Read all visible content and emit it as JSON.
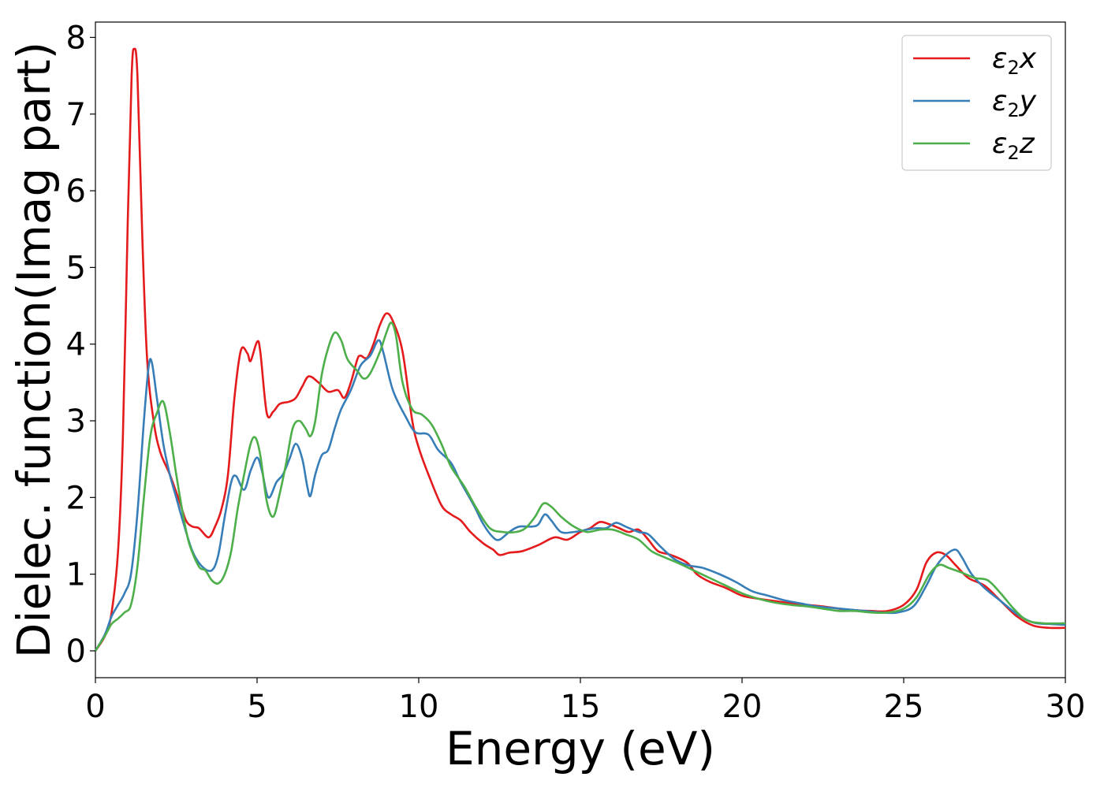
{
  "chart_data": {
    "type": "line",
    "xlabel": "Energy (eV)",
    "ylabel": "Dielec. function(Imag part)",
    "xlim": [
      0,
      30
    ],
    "ylim": [
      -0.35,
      8.2
    ],
    "xticks": [
      0,
      5,
      10,
      15,
      20,
      25,
      30
    ],
    "yticks": [
      0,
      1,
      2,
      3,
      4,
      5,
      6,
      7,
      8
    ],
    "grid": false,
    "legend_position": "top-right",
    "series": [
      {
        "name": "ε2x",
        "color": "#e41a1c",
        "points": [
          [
            0,
            0
          ],
          [
            0.3,
            0.2
          ],
          [
            0.5,
            0.5
          ],
          [
            0.7,
            1.3
          ],
          [
            0.85,
            2.8
          ],
          [
            1.0,
            5.6
          ],
          [
            1.12,
            7.5
          ],
          [
            1.2,
            7.85
          ],
          [
            1.3,
            7.5
          ],
          [
            1.45,
            5.4
          ],
          [
            1.6,
            3.8
          ],
          [
            1.8,
            3.0
          ],
          [
            2.0,
            2.6
          ],
          [
            2.3,
            2.3
          ],
          [
            2.6,
            1.95
          ],
          [
            2.8,
            1.7
          ],
          [
            3.0,
            1.62
          ],
          [
            3.2,
            1.6
          ],
          [
            3.5,
            1.48
          ],
          [
            3.7,
            1.62
          ],
          [
            3.9,
            1.85
          ],
          [
            4.1,
            2.3
          ],
          [
            4.3,
            3.3
          ],
          [
            4.5,
            3.92
          ],
          [
            4.7,
            3.88
          ],
          [
            4.8,
            3.78
          ],
          [
            5.0,
            4.03
          ],
          [
            5.1,
            3.9
          ],
          [
            5.3,
            3.1
          ],
          [
            5.5,
            3.12
          ],
          [
            5.7,
            3.22
          ],
          [
            6.0,
            3.25
          ],
          [
            6.2,
            3.3
          ],
          [
            6.4,
            3.45
          ],
          [
            6.6,
            3.58
          ],
          [
            6.9,
            3.5
          ],
          [
            7.2,
            3.38
          ],
          [
            7.5,
            3.4
          ],
          [
            7.7,
            3.3
          ],
          [
            7.9,
            3.5
          ],
          [
            8.1,
            3.8
          ],
          [
            8.2,
            3.85
          ],
          [
            8.4,
            3.82
          ],
          [
            8.6,
            4.0
          ],
          [
            8.8,
            4.25
          ],
          [
            9.0,
            4.4
          ],
          [
            9.2,
            4.3
          ],
          [
            9.5,
            3.9
          ],
          [
            9.8,
            3.0
          ],
          [
            10.0,
            2.65
          ],
          [
            10.3,
            2.3
          ],
          [
            10.7,
            1.9
          ],
          [
            11.0,
            1.78
          ],
          [
            11.3,
            1.7
          ],
          [
            11.6,
            1.55
          ],
          [
            12.0,
            1.4
          ],
          [
            12.3,
            1.32
          ],
          [
            12.5,
            1.25
          ],
          [
            12.8,
            1.28
          ],
          [
            13.2,
            1.3
          ],
          [
            13.7,
            1.38
          ],
          [
            14.2,
            1.48
          ],
          [
            14.6,
            1.45
          ],
          [
            15.0,
            1.55
          ],
          [
            15.3,
            1.6
          ],
          [
            15.6,
            1.68
          ],
          [
            15.9,
            1.65
          ],
          [
            16.2,
            1.6
          ],
          [
            16.5,
            1.55
          ],
          [
            16.8,
            1.58
          ],
          [
            17.1,
            1.45
          ],
          [
            17.4,
            1.3
          ],
          [
            17.8,
            1.25
          ],
          [
            18.3,
            1.15
          ],
          [
            18.6,
            1.0
          ],
          [
            19.0,
            0.9
          ],
          [
            19.5,
            0.82
          ],
          [
            20.0,
            0.72
          ],
          [
            20.5,
            0.68
          ],
          [
            21.0,
            0.65
          ],
          [
            21.5,
            0.62
          ],
          [
            22.0,
            0.6
          ],
          [
            22.5,
            0.58
          ],
          [
            23.0,
            0.55
          ],
          [
            23.5,
            0.53
          ],
          [
            24.0,
            0.52
          ],
          [
            24.5,
            0.52
          ],
          [
            25.0,
            0.6
          ],
          [
            25.4,
            0.8
          ],
          [
            25.7,
            1.15
          ],
          [
            26.0,
            1.28
          ],
          [
            26.3,
            1.25
          ],
          [
            26.6,
            1.12
          ],
          [
            27.0,
            0.95
          ],
          [
            27.5,
            0.85
          ],
          [
            28.0,
            0.65
          ],
          [
            28.5,
            0.45
          ],
          [
            29.0,
            0.33
          ],
          [
            29.5,
            0.3
          ],
          [
            30.0,
            0.3
          ]
        ]
      },
      {
        "name": "ε2y",
        "color": "#377eb8",
        "points": [
          [
            0,
            0
          ],
          [
            0.3,
            0.22
          ],
          [
            0.5,
            0.45
          ],
          [
            0.7,
            0.6
          ],
          [
            0.9,
            0.75
          ],
          [
            1.1,
            1.0
          ],
          [
            1.3,
            1.8
          ],
          [
            1.5,
            3.0
          ],
          [
            1.65,
            3.72
          ],
          [
            1.75,
            3.75
          ],
          [
            1.9,
            3.3
          ],
          [
            2.1,
            2.7
          ],
          [
            2.3,
            2.3
          ],
          [
            2.5,
            2.0
          ],
          [
            2.7,
            1.7
          ],
          [
            3.0,
            1.3
          ],
          [
            3.3,
            1.1
          ],
          [
            3.6,
            1.05
          ],
          [
            3.8,
            1.25
          ],
          [
            4.0,
            1.75
          ],
          [
            4.2,
            2.2
          ],
          [
            4.35,
            2.28
          ],
          [
            4.6,
            2.1
          ],
          [
            4.8,
            2.35
          ],
          [
            5.0,
            2.52
          ],
          [
            5.15,
            2.35
          ],
          [
            5.35,
            2.0
          ],
          [
            5.6,
            2.2
          ],
          [
            5.8,
            2.3
          ],
          [
            6.0,
            2.5
          ],
          [
            6.2,
            2.7
          ],
          [
            6.4,
            2.5
          ],
          [
            6.55,
            2.15
          ],
          [
            6.65,
            2.02
          ],
          [
            6.8,
            2.3
          ],
          [
            7.0,
            2.55
          ],
          [
            7.2,
            2.62
          ],
          [
            7.4,
            2.9
          ],
          [
            7.6,
            3.15
          ],
          [
            7.9,
            3.4
          ],
          [
            8.2,
            3.72
          ],
          [
            8.5,
            3.85
          ],
          [
            8.75,
            4.05
          ],
          [
            8.9,
            3.9
          ],
          [
            9.2,
            3.4
          ],
          [
            9.6,
            3.05
          ],
          [
            9.9,
            2.85
          ],
          [
            10.3,
            2.82
          ],
          [
            10.6,
            2.62
          ],
          [
            11.0,
            2.45
          ],
          [
            11.3,
            2.2
          ],
          [
            11.7,
            1.9
          ],
          [
            12.0,
            1.65
          ],
          [
            12.3,
            1.48
          ],
          [
            12.5,
            1.45
          ],
          [
            12.8,
            1.55
          ],
          [
            13.1,
            1.62
          ],
          [
            13.5,
            1.62
          ],
          [
            13.7,
            1.65
          ],
          [
            13.9,
            1.78
          ],
          [
            14.1,
            1.7
          ],
          [
            14.4,
            1.55
          ],
          [
            14.8,
            1.55
          ],
          [
            15.2,
            1.58
          ],
          [
            15.5,
            1.6
          ],
          [
            15.8,
            1.6
          ],
          [
            16.1,
            1.67
          ],
          [
            16.4,
            1.62
          ],
          [
            16.8,
            1.55
          ],
          [
            17.1,
            1.52
          ],
          [
            17.5,
            1.35
          ],
          [
            17.9,
            1.2
          ],
          [
            18.3,
            1.12
          ],
          [
            18.8,
            1.08
          ],
          [
            19.3,
            1.0
          ],
          [
            19.8,
            0.9
          ],
          [
            20.3,
            0.78
          ],
          [
            20.8,
            0.72
          ],
          [
            21.3,
            0.66
          ],
          [
            21.8,
            0.62
          ],
          [
            22.3,
            0.58
          ],
          [
            22.8,
            0.56
          ],
          [
            23.3,
            0.54
          ],
          [
            23.8,
            0.52
          ],
          [
            24.3,
            0.5
          ],
          [
            24.8,
            0.5
          ],
          [
            25.3,
            0.58
          ],
          [
            25.7,
            0.85
          ],
          [
            26.0,
            1.1
          ],
          [
            26.3,
            1.25
          ],
          [
            26.6,
            1.32
          ],
          [
            26.8,
            1.22
          ],
          [
            27.1,
            1.0
          ],
          [
            27.5,
            0.82
          ],
          [
            28.0,
            0.65
          ],
          [
            28.5,
            0.48
          ],
          [
            29.0,
            0.37
          ],
          [
            29.5,
            0.35
          ],
          [
            30.0,
            0.34
          ]
        ]
      },
      {
        "name": "ε2z",
        "color": "#4daf4a",
        "points": [
          [
            0,
            0
          ],
          [
            0.3,
            0.2
          ],
          [
            0.5,
            0.35
          ],
          [
            0.7,
            0.42
          ],
          [
            0.9,
            0.5
          ],
          [
            1.1,
            0.6
          ],
          [
            1.3,
            1.1
          ],
          [
            1.5,
            2.0
          ],
          [
            1.7,
            2.8
          ],
          [
            1.9,
            3.1
          ],
          [
            2.1,
            3.25
          ],
          [
            2.3,
            2.85
          ],
          [
            2.5,
            2.3
          ],
          [
            2.7,
            1.8
          ],
          [
            2.9,
            1.4
          ],
          [
            3.2,
            1.1
          ],
          [
            3.4,
            1.05
          ],
          [
            3.6,
            0.92
          ],
          [
            3.8,
            0.88
          ],
          [
            4.0,
            1.0
          ],
          [
            4.2,
            1.3
          ],
          [
            4.4,
            1.85
          ],
          [
            4.6,
            2.3
          ],
          [
            4.8,
            2.7
          ],
          [
            4.95,
            2.78
          ],
          [
            5.1,
            2.55
          ],
          [
            5.3,
            1.95
          ],
          [
            5.5,
            1.75
          ],
          [
            5.7,
            2.05
          ],
          [
            5.9,
            2.45
          ],
          [
            6.1,
            2.9
          ],
          [
            6.3,
            3.0
          ],
          [
            6.5,
            2.9
          ],
          [
            6.65,
            2.8
          ],
          [
            6.8,
            3.0
          ],
          [
            7.0,
            3.6
          ],
          [
            7.2,
            3.95
          ],
          [
            7.4,
            4.15
          ],
          [
            7.6,
            4.05
          ],
          [
            7.8,
            3.8
          ],
          [
            8.1,
            3.65
          ],
          [
            8.3,
            3.55
          ],
          [
            8.5,
            3.62
          ],
          [
            8.8,
            3.9
          ],
          [
            9.0,
            4.15
          ],
          [
            9.15,
            4.28
          ],
          [
            9.3,
            4.1
          ],
          [
            9.5,
            3.5
          ],
          [
            9.8,
            3.15
          ],
          [
            10.1,
            3.08
          ],
          [
            10.4,
            2.95
          ],
          [
            10.7,
            2.7
          ],
          [
            11.0,
            2.4
          ],
          [
            11.4,
            2.15
          ],
          [
            11.8,
            1.85
          ],
          [
            12.2,
            1.6
          ],
          [
            12.6,
            1.55
          ],
          [
            13.0,
            1.55
          ],
          [
            13.3,
            1.6
          ],
          [
            13.6,
            1.75
          ],
          [
            13.85,
            1.92
          ],
          [
            14.1,
            1.88
          ],
          [
            14.4,
            1.75
          ],
          [
            14.8,
            1.62
          ],
          [
            15.2,
            1.55
          ],
          [
            15.6,
            1.58
          ],
          [
            16.0,
            1.58
          ],
          [
            16.4,
            1.52
          ],
          [
            16.8,
            1.45
          ],
          [
            17.2,
            1.3
          ],
          [
            17.6,
            1.22
          ],
          [
            18.0,
            1.15
          ],
          [
            18.5,
            1.05
          ],
          [
            19.0,
            0.95
          ],
          [
            19.5,
            0.85
          ],
          [
            20.0,
            0.75
          ],
          [
            20.5,
            0.68
          ],
          [
            21.0,
            0.63
          ],
          [
            21.5,
            0.6
          ],
          [
            22.0,
            0.58
          ],
          [
            22.5,
            0.55
          ],
          [
            23.0,
            0.52
          ],
          [
            23.5,
            0.52
          ],
          [
            24.0,
            0.5
          ],
          [
            24.5,
            0.5
          ],
          [
            25.0,
            0.55
          ],
          [
            25.4,
            0.7
          ],
          [
            25.8,
            1.0
          ],
          [
            26.1,
            1.12
          ],
          [
            26.4,
            1.08
          ],
          [
            26.8,
            1.02
          ],
          [
            27.2,
            0.95
          ],
          [
            27.6,
            0.92
          ],
          [
            28.0,
            0.75
          ],
          [
            28.4,
            0.55
          ],
          [
            28.8,
            0.4
          ],
          [
            29.3,
            0.36
          ],
          [
            30.0,
            0.36
          ]
        ]
      }
    ]
  }
}
